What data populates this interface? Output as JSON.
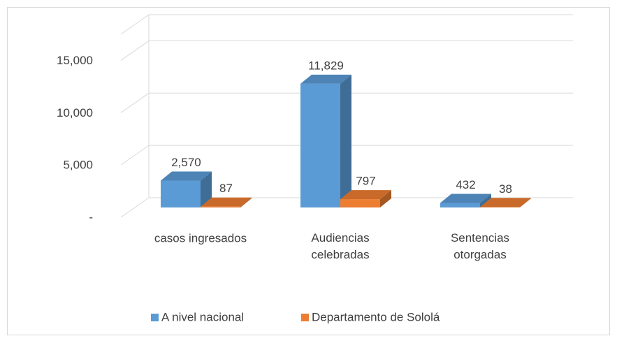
{
  "chart_data": {
    "type": "bar3d",
    "categories": [
      "casos ingresados",
      "Audiencias celebradas",
      "Sentencias otorgadas"
    ],
    "series": [
      {
        "name": "A nivel nacional",
        "color": "#5b9bd5",
        "values": [
          2570,
          11829,
          432
        ],
        "value_labels": [
          "2,570",
          "11,829",
          "432"
        ]
      },
      {
        "name": "Departamento de Sololá",
        "color": "#ed7d31",
        "values": [
          87,
          797,
          38
        ],
        "value_labels": [
          "87",
          "797",
          "38"
        ]
      }
    ],
    "ylim": [
      0,
      17500
    ],
    "yticks": [
      {
        "value": 0,
        "label": "-"
      },
      {
        "value": 5000,
        "label": "5,000"
      },
      {
        "value": 10000,
        "label": "10,000"
      },
      {
        "value": 15000,
        "label": "15,000"
      }
    ],
    "grid": true,
    "legend": "bottom"
  }
}
